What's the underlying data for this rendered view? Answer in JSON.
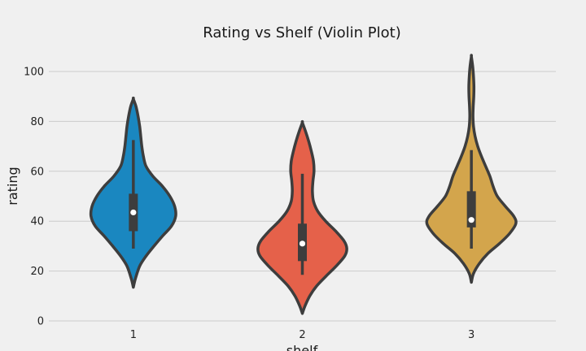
{
  "chart_data": {
    "type": "violin",
    "title": "Rating vs Shelf (Violin Plot)",
    "xlabel": "shelf",
    "ylabel": "rating",
    "categories": [
      "1",
      "2",
      "3"
    ],
    "ylim": [
      -2,
      112
    ],
    "yticks": [
      0,
      20,
      40,
      60,
      80,
      100
    ],
    "grid": true,
    "colors": [
      "#1a87c0",
      "#e5614a",
      "#d3a54c"
    ],
    "violins": [
      {
        "category": "1",
        "median": 43.5,
        "q1": 36,
        "q3": 51,
        "whisker_low": 29,
        "whisker_high": 72.5,
        "min": 13.5,
        "max": 89,
        "density": [
          [
            13.5,
            0
          ],
          [
            17,
            0.04
          ],
          [
            22,
            0.12
          ],
          [
            26,
            0.24
          ],
          [
            30,
            0.39
          ],
          [
            34,
            0.55
          ],
          [
            38,
            0.72
          ],
          [
            42,
            0.8
          ],
          [
            46,
            0.78
          ],
          [
            50,
            0.69
          ],
          [
            54,
            0.55
          ],
          [
            58,
            0.37
          ],
          [
            62,
            0.24
          ],
          [
            66,
            0.19
          ],
          [
            70,
            0.16
          ],
          [
            74,
            0.14
          ],
          [
            78,
            0.12
          ],
          [
            82,
            0.09
          ],
          [
            86,
            0.05
          ],
          [
            89,
            0
          ]
        ]
      },
      {
        "category": "2",
        "median": 31,
        "q1": 24,
        "q3": 39,
        "whisker_low": 18.5,
        "whisker_high": 59,
        "min": 3,
        "max": 79.5,
        "density": [
          [
            3,
            0
          ],
          [
            6,
            0.05
          ],
          [
            10,
            0.14
          ],
          [
            14,
            0.27
          ],
          [
            18,
            0.45
          ],
          [
            22,
            0.64
          ],
          [
            26,
            0.8
          ],
          [
            29,
            0.84
          ],
          [
            32,
            0.79
          ],
          [
            36,
            0.63
          ],
          [
            40,
            0.44
          ],
          [
            44,
            0.29
          ],
          [
            48,
            0.21
          ],
          [
            52,
            0.19
          ],
          [
            56,
            0.2
          ],
          [
            60,
            0.22
          ],
          [
            64,
            0.21
          ],
          [
            68,
            0.17
          ],
          [
            72,
            0.12
          ],
          [
            76,
            0.06
          ],
          [
            79.5,
            0
          ]
        ]
      },
      {
        "category": "3",
        "median": 40.5,
        "q1": 37.5,
        "q3": 52,
        "whisker_low": 29,
        "whisker_high": 68.5,
        "min": 15.5,
        "max": 106,
        "density": [
          [
            15.5,
            0
          ],
          [
            19,
            0.04
          ],
          [
            23,
            0.15
          ],
          [
            27,
            0.31
          ],
          [
            31,
            0.53
          ],
          [
            35,
            0.72
          ],
          [
            39,
            0.84
          ],
          [
            42,
            0.8
          ],
          [
            46,
            0.64
          ],
          [
            50,
            0.49
          ],
          [
            54,
            0.41
          ],
          [
            58,
            0.35
          ],
          [
            62,
            0.27
          ],
          [
            66,
            0.19
          ],
          [
            70,
            0.12
          ],
          [
            74,
            0.07
          ],
          [
            78,
            0.04
          ],
          [
            82,
            0.03
          ],
          [
            86,
            0.035
          ],
          [
            90,
            0.045
          ],
          [
            94,
            0.048
          ],
          [
            98,
            0.04
          ],
          [
            102,
            0.025
          ],
          [
            106,
            0
          ]
        ]
      }
    ]
  }
}
